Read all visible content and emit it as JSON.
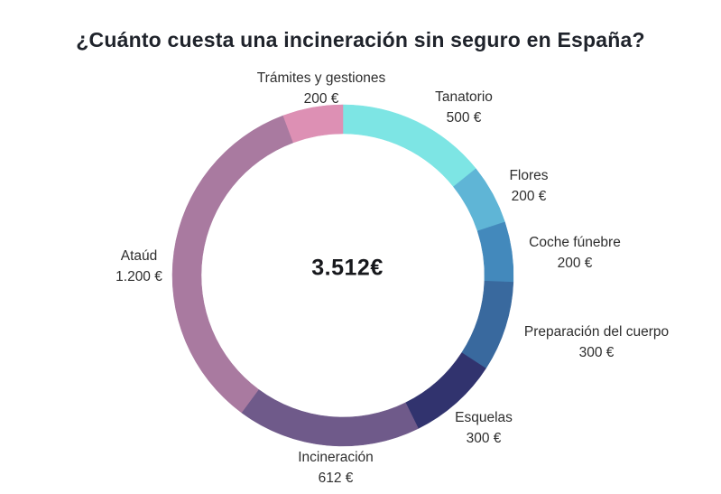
{
  "chart_data": {
    "type": "pie",
    "subtype": "donut",
    "title": "¿Cuánto cuesta una incineración sin seguro en España?",
    "center_total": "3.512€",
    "total_value": 3512,
    "legend_position": "around-slices",
    "slices": [
      {
        "label": "Tanatorio",
        "value": 500,
        "value_label": "500 €",
        "color": "#7DE5E4"
      },
      {
        "label": "Flores",
        "value": 200,
        "value_label": "200 €",
        "color": "#5FB5D6"
      },
      {
        "label": "Coche fúnebre",
        "value": 200,
        "value_label": "200 €",
        "color": "#4389BC"
      },
      {
        "label": "Preparación del cuerpo",
        "value": 300,
        "value_label": "300 €",
        "color": "#39699E"
      },
      {
        "label": "Esquelas",
        "value": 300,
        "value_label": "300 €",
        "color": "#31336E"
      },
      {
        "label": "Incineración",
        "value": 612,
        "value_label": "612 €",
        "color": "#6F5A8A"
      },
      {
        "label": "Ataúd",
        "value": 1200,
        "value_label": "1.200 €",
        "color": "#A97AA0"
      },
      {
        "label": "Trámites y gestiones",
        "value": 200,
        "value_label": "200 €",
        "color": "#DD90B4"
      }
    ]
  }
}
